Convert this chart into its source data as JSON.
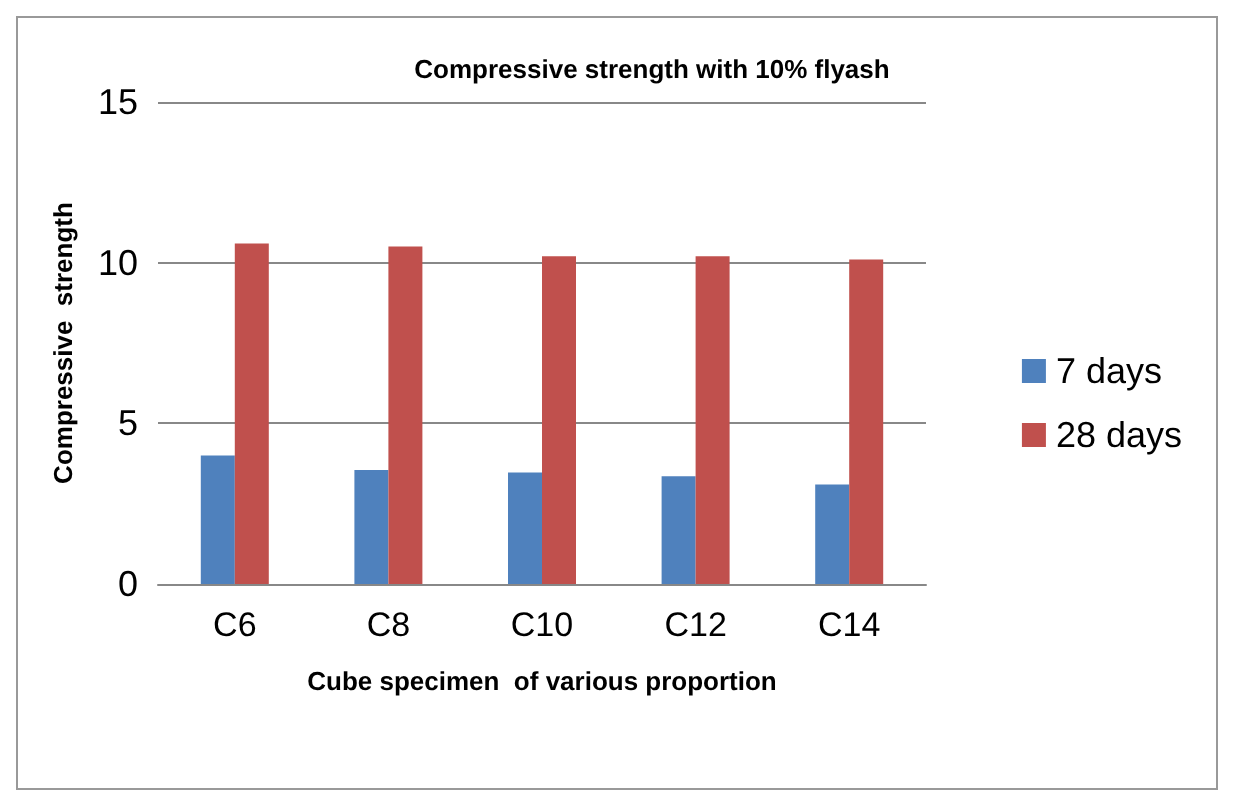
{
  "chart_data": {
    "type": "bar",
    "title": "Compressive strength with 10% flyash",
    "xlabel": "Cube specimen  of various proportion",
    "ylabel": "Compressive  strength",
    "categories": [
      "C6",
      "C8",
      "C10",
      "C12",
      "C14"
    ],
    "series": [
      {
        "name": "7 days",
        "color": "#4f81bd",
        "values": [
          4.0,
          3.55,
          3.47,
          3.35,
          3.1
        ]
      },
      {
        "name": "28 days",
        "color": "#c0504d",
        "values": [
          10.6,
          10.5,
          10.2,
          10.2,
          10.1
        ]
      }
    ],
    "ylim": [
      0,
      15
    ],
    "yticks": [
      0,
      5,
      10,
      15
    ],
    "grid": "y",
    "legend": "right"
  }
}
